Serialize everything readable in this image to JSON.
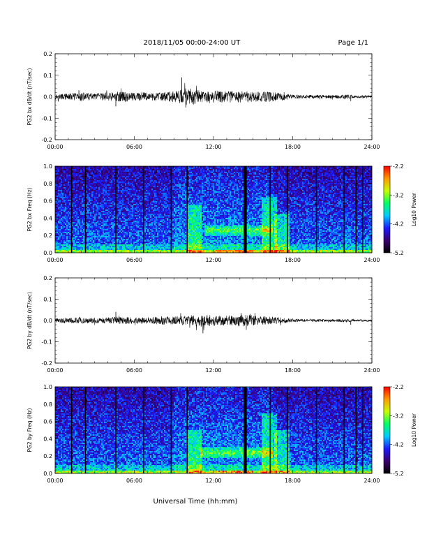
{
  "header": {
    "title": "2018/11/05  00:00-24:00 UT",
    "page": "Page 1/1"
  },
  "xlabel": "Universal Time (hh:mm)",
  "x_ticks": [
    "00:00",
    "06:00",
    "12:00",
    "18:00",
    "24:00"
  ],
  "colorbar": {
    "label": "Log10 Power",
    "ticks": [
      "-2.2",
      "-3.2",
      "-4.2",
      "-5.2"
    ],
    "colors": [
      "#000000",
      "#3b0070",
      "#1a1aff",
      "#00ccff",
      "#00ff66",
      "#c8ff00",
      "#ff9a00",
      "#ff0000"
    ]
  },
  "chart_data": [
    {
      "type": "line",
      "panel": "bx-time-series",
      "xlabel": "",
      "ylabel": "PG2 bx dB/dt (nT/sec)",
      "xlim": [
        0,
        24
      ],
      "ylim": [
        -0.2,
        0.2
      ],
      "y_ticks": [
        "0.2",
        "0.1",
        "0.0",
        "-0.1",
        "-0.2"
      ],
      "amplitude_envelope": {
        "x": [
          0,
          1,
          2,
          3,
          4,
          5,
          6,
          7,
          8,
          9,
          10,
          11,
          12,
          13,
          14,
          15,
          16,
          17,
          18,
          19,
          20,
          21,
          22,
          23,
          24
        ],
        "y": [
          0.012,
          0.015,
          0.02,
          0.015,
          0.02,
          0.025,
          0.02,
          0.02,
          0.02,
          0.025,
          0.04,
          0.03,
          0.03,
          0.028,
          0.028,
          0.025,
          0.025,
          0.02,
          0.01,
          0.008,
          0.008,
          0.008,
          0.01,
          0.006,
          0.006
        ]
      },
      "spikes": [
        {
          "x": 1.8,
          "y": 0.03
        },
        {
          "x": 4.6,
          "y": -0.045
        },
        {
          "x": 9.6,
          "y": 0.09
        },
        {
          "x": 9.9,
          "y": -0.05
        },
        {
          "x": 22.4,
          "y": -0.02
        }
      ],
      "color": "#000000"
    },
    {
      "type": "heatmap",
      "panel": "bx-spectrogram",
      "xlabel": "",
      "ylabel": "PG2 bx Freq (Hz)",
      "xlim": [
        0,
        24
      ],
      "ylim": [
        0,
        1.0
      ],
      "y_ticks": [
        "1.0",
        "0.8",
        "0.6",
        "0.4",
        "0.2",
        "0.0"
      ],
      "zlim": [
        -5.2,
        -2.2
      ],
      "gap_lines": [
        1.25,
        2.3,
        4.6,
        6.7,
        8.8,
        10.0,
        14.4,
        16.3,
        17.6,
        19.8,
        21.9,
        22.8,
        23.3
      ],
      "broad_gap": 14.4,
      "broadband_bursts": [
        {
          "x": 10.5,
          "fmax": 0.55
        },
        {
          "x": 16.2,
          "fmax": 0.65
        },
        {
          "x": 17.2,
          "fmax": 0.45
        }
      ],
      "emission_band": {
        "x_start": 11.3,
        "x_end": 16.5,
        "f_center": 0.26,
        "f_width": 0.06
      }
    },
    {
      "type": "line",
      "panel": "by-time-series",
      "xlabel": "",
      "ylabel": "PG2 by dB/dt (nT/sec)",
      "xlim": [
        0,
        24
      ],
      "ylim": [
        -0.2,
        0.2
      ],
      "y_ticks": [
        "0.2",
        "0.1",
        "0.0",
        "-0.1",
        "-0.2"
      ],
      "amplitude_envelope": {
        "x": [
          0,
          1,
          2,
          3,
          4,
          5,
          6,
          7,
          8,
          9,
          10,
          11,
          12,
          13,
          14,
          15,
          16,
          17,
          18,
          19,
          20,
          21,
          22,
          23,
          24
        ],
        "y": [
          0.01,
          0.012,
          0.015,
          0.012,
          0.015,
          0.018,
          0.015,
          0.015,
          0.02,
          0.02,
          0.022,
          0.028,
          0.025,
          0.025,
          0.028,
          0.025,
          0.02,
          0.015,
          0.008,
          0.006,
          0.006,
          0.006,
          0.008,
          0.005,
          0.005
        ]
      },
      "spikes": [
        {
          "x": 4.6,
          "y": 0.04
        },
        {
          "x": 11.2,
          "y": -0.06
        },
        {
          "x": 14.1,
          "y": 0.035
        },
        {
          "x": 22.4,
          "y": -0.02
        }
      ],
      "color": "#000000"
    },
    {
      "type": "heatmap",
      "panel": "by-spectrogram",
      "xlabel": "",
      "ylabel": "PG2 by Freq (Hz)",
      "xlim": [
        0,
        24
      ],
      "ylim": [
        0,
        1.0
      ],
      "y_ticks": [
        "1.0",
        "0.8",
        "0.6",
        "0.4",
        "0.2",
        "0.0"
      ],
      "zlim": [
        -5.2,
        -2.2
      ],
      "gap_lines": [
        1.25,
        2.3,
        4.6,
        6.7,
        8.8,
        10.0,
        14.4,
        16.3,
        17.6,
        19.8,
        21.9,
        22.8,
        23.3
      ],
      "broad_gap": 14.4,
      "broadband_bursts": [
        {
          "x": 10.5,
          "fmax": 0.5
        },
        {
          "x": 16.2,
          "fmax": 0.7
        },
        {
          "x": 17.2,
          "fmax": 0.5
        }
      ],
      "emission_band": {
        "x_start": 11.0,
        "x_end": 16.5,
        "f_center": 0.24,
        "f_width": 0.07
      }
    }
  ]
}
